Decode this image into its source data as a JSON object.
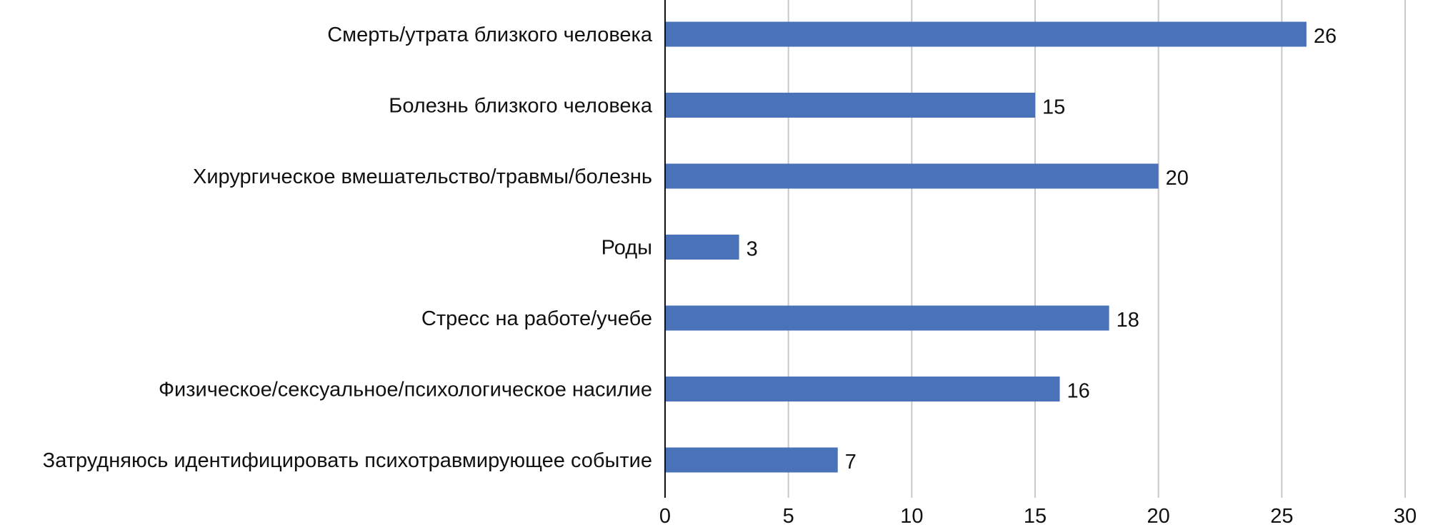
{
  "chart_data": {
    "type": "bar",
    "orientation": "horizontal",
    "categories": [
      "Смерть/утрата близкого человека",
      "Болезнь близкого человека",
      "Хирургическое вмешательство/травмы/болезнь",
      "Роды",
      "Стресс на работе/учебе",
      "Физическое/сексуальное/психологическое насилие",
      "Затрудняюсь идентифицировать психотравмирующее событие"
    ],
    "values": [
      26,
      15,
      20,
      3,
      18,
      16,
      7
    ],
    "data_labels": [
      "26",
      "15",
      "20",
      "3",
      "18",
      "16",
      "7"
    ],
    "xlim": [
      0,
      30
    ],
    "x_ticks": [
      0,
      5,
      10,
      15,
      20,
      25,
      30
    ],
    "x_tick_labels": [
      "0",
      "5",
      "10",
      "15",
      "20",
      "25",
      "30"
    ],
    "grid": true,
    "legend": "none",
    "bar_color": "#4a72b8",
    "title": "",
    "xlabel": "",
    "ylabel": ""
  }
}
